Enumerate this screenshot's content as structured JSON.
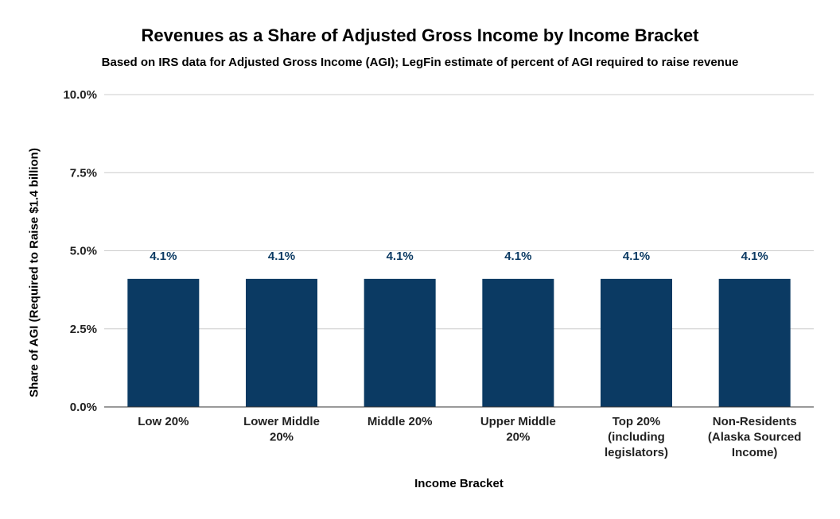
{
  "chart_data": {
    "type": "bar",
    "title": "Revenues as a Share of Adjusted Gross Income by Income Bracket",
    "subtitle": "Based on IRS data for Adjusted Gross Income (AGI); LegFin estimate of percent of AGI required to raise revenue",
    "xlabel": "Income Bracket",
    "ylabel": "Share of AGI (Required to Raise $1.4 billion)",
    "categories": [
      [
        "Low 20%"
      ],
      [
        "Lower Middle",
        "20%"
      ],
      [
        "Middle 20%"
      ],
      [
        "Upper Middle",
        "20%"
      ],
      [
        "Top 20%",
        "(including",
        "legislators)"
      ],
      [
        "Non-Residents",
        "(Alaska Sourced",
        "Income)"
      ]
    ],
    "values": [
      4.1,
      4.1,
      4.1,
      4.1,
      4.1,
      4.1
    ],
    "data_labels": [
      "4.1%",
      "4.1%",
      "4.1%",
      "4.1%",
      "4.1%",
      "4.1%"
    ],
    "ylim": [
      0,
      10
    ],
    "yticks": [
      0,
      2.5,
      5,
      7.5,
      10
    ],
    "ytick_labels": [
      "0.0%",
      "2.5%",
      "5.0%",
      "7.5%",
      "10.0%"
    ],
    "grid": true,
    "legend": "none",
    "colors": {
      "bar": "#0b3a63",
      "grid": "#cccccc",
      "axis": "#333333",
      "data_label": "#0b3a63"
    }
  }
}
